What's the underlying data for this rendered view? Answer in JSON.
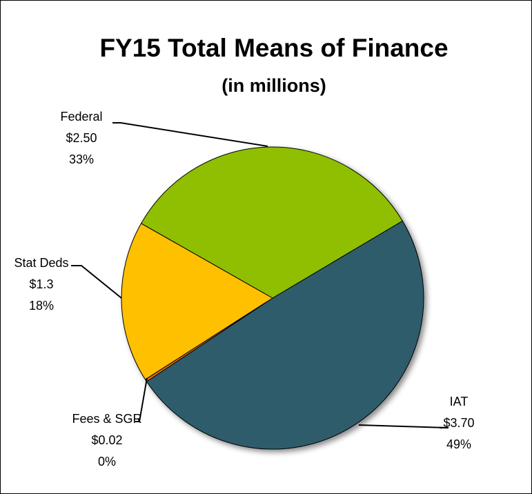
{
  "chart_data": {
    "type": "pie",
    "title": "FY15 Total Means of Finance",
    "subtitle": "(in millions)",
    "categories": [
      "IAT",
      "Fees & SGR",
      "Stat Deds",
      "Federal"
    ],
    "values": [
      3.7,
      0.02,
      1.3,
      2.5
    ],
    "value_labels": [
      "$3.70",
      "$0.02",
      "$1.3",
      "$2.50"
    ],
    "percent_labels": [
      "49%",
      "0%",
      "18%",
      "33%"
    ],
    "colors": [
      "#2e5b6b",
      "#e46c0a",
      "#ffc000",
      "#8fbf00"
    ]
  }
}
